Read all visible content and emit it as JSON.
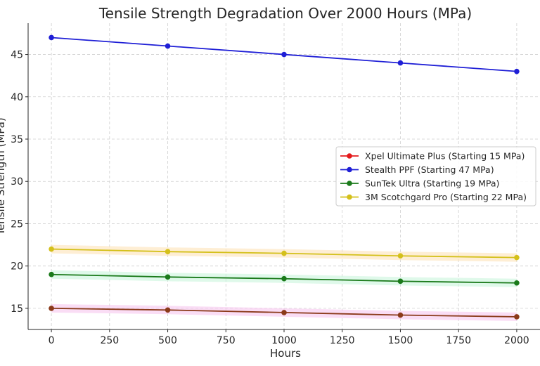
{
  "chart_data": {
    "type": "line",
    "title": "Tensile Strength Degradation Over 2000 Hours (MPa)",
    "xlabel": "Hours",
    "ylabel": "Tensile Strength (MPa)",
    "x": [
      0,
      500,
      1000,
      1500,
      2000
    ],
    "xlim": [
      -100,
      2100
    ],
    "ylim": [
      12.5,
      48.7
    ],
    "xticks": [
      0,
      250,
      500,
      750,
      1000,
      1250,
      1500,
      1750,
      2000
    ],
    "yticks": [
      15,
      20,
      25,
      30,
      35,
      40,
      45
    ],
    "grid": true,
    "legend_position": "center-right",
    "series": [
      {
        "name": "Xpel Ultimate Plus (Starting 15 MPa)",
        "color": "#e41a1c",
        "values": [
          15,
          14.8,
          14.5,
          14.2,
          14.0
        ]
      },
      {
        "name": "Stealth PPF (Starting 47 MPa)",
        "color": "#1f1fd6",
        "values": [
          47,
          46,
          45,
          44,
          43
        ]
      },
      {
        "name": "SunTek Ultra (Starting 19 MPa)",
        "color": "#1a7a1a",
        "values": [
          19,
          18.7,
          18.5,
          18.2,
          18.0
        ]
      },
      {
        "name": "3M Scotchgard Pro (Starting 22 MPa)",
        "color": "#d4c01a",
        "values": [
          22,
          21.7,
          21.5,
          21.2,
          21.0
        ]
      }
    ],
    "overlap_color": "#8b3a1a"
  }
}
